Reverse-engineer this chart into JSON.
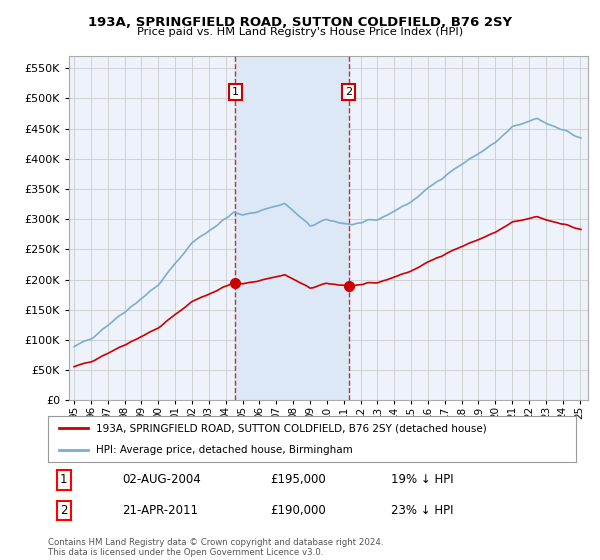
{
  "title": "193A, SPRINGFIELD ROAD, SUTTON COLDFIELD, B76 2SY",
  "subtitle": "Price paid vs. HM Land Registry's House Price Index (HPI)",
  "legend_label_red": "193A, SPRINGFIELD ROAD, SUTTON COLDFIELD, B76 2SY (detached house)",
  "legend_label_blue": "HPI: Average price, detached house, Birmingham",
  "transaction1_date": "02-AUG-2004",
  "transaction1_price": "£195,000",
  "transaction1_hpi": "19% ↓ HPI",
  "transaction2_date": "21-APR-2011",
  "transaction2_price": "£190,000",
  "transaction2_hpi": "23% ↓ HPI",
  "footer": "Contains HM Land Registry data © Crown copyright and database right 2024.\nThis data is licensed under the Open Government Licence v3.0.",
  "ylim": [
    0,
    570000
  ],
  "yticks": [
    0,
    50000,
    100000,
    150000,
    200000,
    250000,
    300000,
    350000,
    400000,
    450000,
    500000,
    550000
  ],
  "background_color": "#ffffff",
  "plot_bg_color": "#eef2fa",
  "shade_color": "#dce8f5",
  "grid_color": "#cccccc",
  "red_color": "#cc0000",
  "blue_color": "#7aadd4",
  "vline_color": "#cc0000",
  "sale1_year": 2004.58,
  "sale1_price": 195000,
  "sale2_year": 2011.3,
  "sale2_price": 190000
}
